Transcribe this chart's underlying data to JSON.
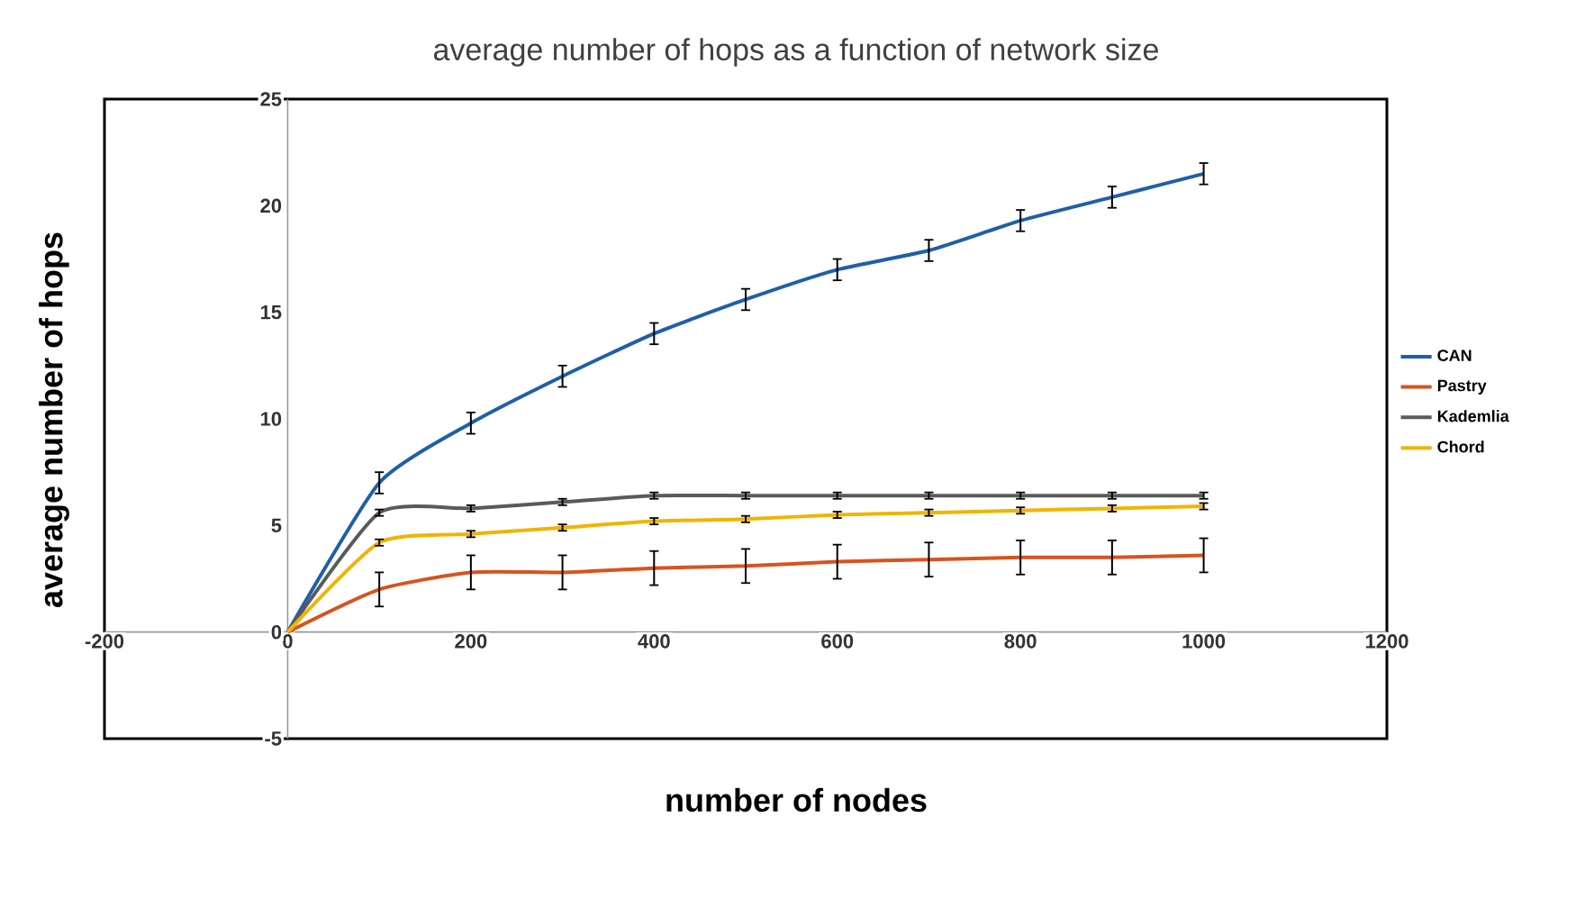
{
  "chart_data": {
    "type": "line",
    "title": "average number of hops as a function of network size",
    "xlabel": "number of nodes",
    "ylabel": "average number of hops",
    "x": [
      0,
      100,
      200,
      300,
      400,
      500,
      600,
      700,
      800,
      900,
      1000
    ],
    "series": [
      {
        "name": "CAN",
        "color": "#1f5fa8",
        "values": [
          0,
          7.0,
          9.8,
          12.0,
          14.0,
          15.6,
          17.0,
          17.9,
          19.3,
          20.4,
          21.5
        ],
        "errors": [
          null,
          0.5,
          0.5,
          0.5,
          0.5,
          0.5,
          0.5,
          0.5,
          0.5,
          0.5,
          0.5
        ]
      },
      {
        "name": "Pastry",
        "color": "#d9531e",
        "values": [
          0,
          2.0,
          2.8,
          2.8,
          3.0,
          3.1,
          3.3,
          3.4,
          3.5,
          3.5,
          3.6
        ],
        "errors": [
          null,
          0.8,
          0.8,
          0.8,
          0.8,
          0.8,
          0.8,
          0.8,
          0.8,
          0.8,
          0.8
        ]
      },
      {
        "name": "Kademlia",
        "color": "#5a5a5a",
        "values": [
          0,
          5.6,
          5.8,
          6.1,
          6.4,
          6.4,
          6.4,
          6.4,
          6.4,
          6.4,
          6.4
        ],
        "errors": [
          null,
          0.15,
          0.15,
          0.15,
          0.15,
          0.15,
          0.15,
          0.15,
          0.15,
          0.15,
          0.15
        ]
      },
      {
        "name": "Chord",
        "color": "#f0b400",
        "values": [
          0,
          4.2,
          4.6,
          4.9,
          5.2,
          5.3,
          5.5,
          5.6,
          5.7,
          5.8,
          5.9
        ],
        "errors": [
          null,
          0.15,
          0.15,
          0.15,
          0.15,
          0.15,
          0.15,
          0.15,
          0.15,
          0.15,
          0.15
        ]
      }
    ],
    "xlim": [
      -200,
      1200
    ],
    "ylim": [
      -5,
      25
    ],
    "xticks": [
      -200,
      0,
      200,
      400,
      600,
      800,
      1000,
      1200
    ],
    "yticks": [
      -5,
      0,
      5,
      10,
      15,
      20,
      25
    ],
    "grid": false,
    "legend": "right",
    "marker": "none",
    "line_style": "solid"
  }
}
